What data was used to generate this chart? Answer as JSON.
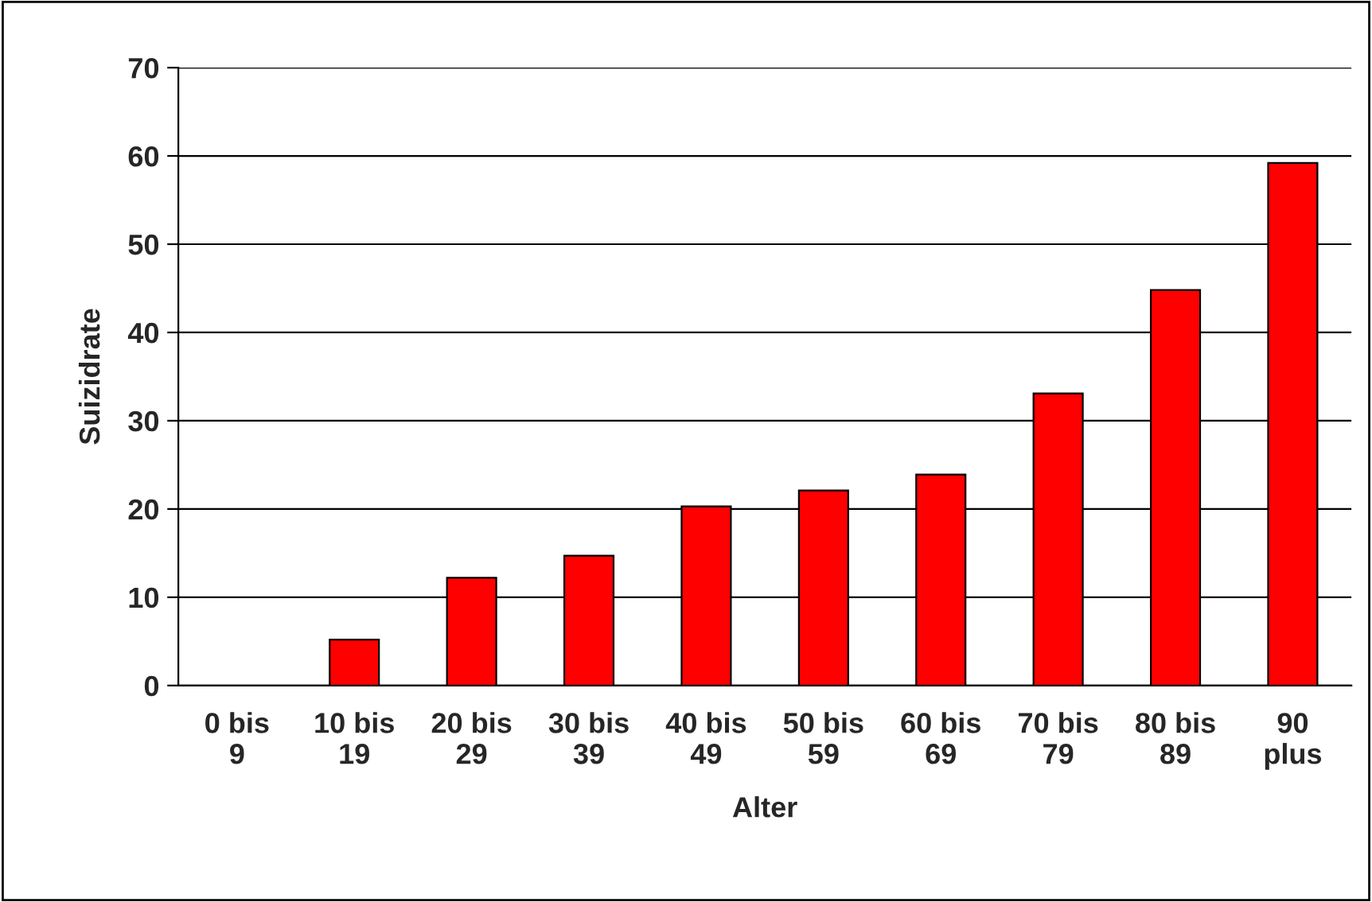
{
  "chart_data": {
    "type": "bar",
    "xlabel": "Alter",
    "ylabel": "Suizidrate",
    "categories": [
      "0 bis\n9",
      "10 bis\n19",
      "20 bis\n29",
      "30 bis\n39",
      "40 bis\n49",
      "50 bis\n59",
      "60 bis\n69",
      "70 bis\n79",
      "80 bis\n89",
      "90\nplus"
    ],
    "values": [
      0,
      5.2,
      12.2,
      14.7,
      20.3,
      22.1,
      23.9,
      33.1,
      44.8,
      59.2
    ],
    "color": "#ff0000",
    "ylim": [
      0,
      70
    ],
    "yticks": [
      0,
      10,
      20,
      30,
      40,
      50,
      60,
      70
    ],
    "grid": "y",
    "legend": false
  }
}
